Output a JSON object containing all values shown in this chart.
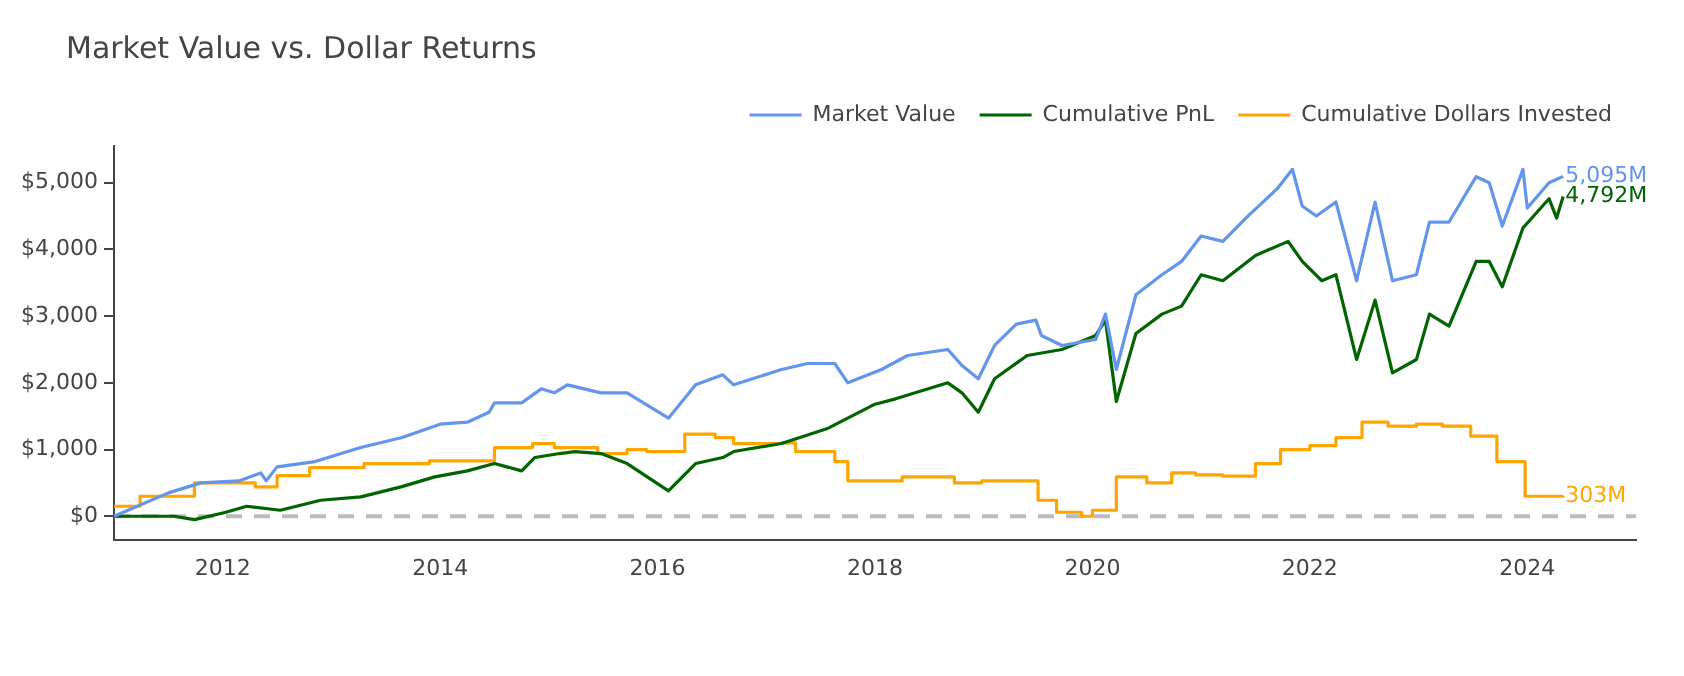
{
  "chart_data": {
    "type": "line",
    "title": "Market Value vs. Dollar Returns",
    "xlim": [
      2011,
      2025
    ],
    "xticks": [
      2012,
      2014,
      2016,
      2018,
      2020,
      2022,
      2024
    ],
    "ylim": [
      -350,
      5550
    ],
    "yticks": [
      {
        "value": 0,
        "label": "$0"
      },
      {
        "value": 1000,
        "label": "$1,000"
      },
      {
        "value": 2000,
        "label": "$2,000"
      },
      {
        "value": 3000,
        "label": "$3,000"
      },
      {
        "value": 4000,
        "label": "$4,000"
      },
      {
        "value": 5000,
        "label": "$5,000"
      }
    ],
    "grid": false,
    "legend": "top right",
    "marker": "none",
    "line_style": "solid",
    "series": [
      {
        "name": "Market Value",
        "color": "#6495ed",
        "x": [
          2011.0,
          2011.5,
          2011.8,
          2012.15,
          2012.35,
          2012.4,
          2012.5,
          2012.85,
          2013.27,
          2013.65,
          2014.0,
          2014.25,
          2014.45,
          2014.5,
          2014.75,
          2014.93,
          2015.05,
          2015.17,
          2015.48,
          2015.72,
          2016.1,
          2016.35,
          2016.6,
          2016.7,
          2017.14,
          2017.38,
          2017.63,
          2017.75,
          2018.06,
          2018.3,
          2018.67,
          2018.8,
          2018.95,
          2019.1,
          2019.3,
          2019.48,
          2019.53,
          2019.72,
          2020.03,
          2020.12,
          2020.22,
          2020.4,
          2020.64,
          2020.82,
          2021.0,
          2021.2,
          2021.43,
          2021.7,
          2021.84,
          2021.93,
          2022.06,
          2022.24,
          2022.43,
          2022.6,
          2022.76,
          2022.98,
          2023.1,
          2023.28,
          2023.53,
          2023.65,
          2023.77,
          2023.96,
          2024.0,
          2024.2,
          2024.33
        ],
        "values": [
          0,
          350,
          500,
          530,
          650,
          530,
          740,
          820,
          1030,
          1180,
          1380,
          1410,
          1560,
          1700,
          1700,
          1910,
          1850,
          1970,
          1850,
          1850,
          1470,
          1970,
          2120,
          1970,
          2200,
          2290,
          2290,
          2000,
          2200,
          2410,
          2500,
          2260,
          2060,
          2560,
          2880,
          2940,
          2710,
          2560,
          2650,
          3030,
          2200,
          3320,
          3620,
          3820,
          4200,
          4120,
          4500,
          4910,
          5200,
          4650,
          4500,
          4710,
          3530,
          4710,
          3530,
          3620,
          4410,
          4410,
          5090,
          5000,
          4350,
          5200,
          4620,
          5000,
          5095
        ],
        "value_labels": [
          null,
          null,
          null,
          null,
          null,
          null,
          null,
          null,
          null,
          null,
          null,
          null,
          null,
          null,
          null,
          null,
          null,
          null,
          null,
          null,
          null,
          null,
          null,
          null,
          null,
          null,
          null,
          null,
          null,
          null,
          null,
          null,
          null,
          null,
          null,
          null,
          null,
          null,
          null,
          null,
          null,
          null,
          null,
          null,
          null,
          null,
          null,
          null,
          null,
          null,
          null,
          null,
          null,
          null,
          null,
          null,
          null,
          null,
          null,
          null,
          null,
          null,
          null,
          null,
          "5,095M"
        ]
      },
      {
        "name": "Cumulative PnL",
        "color": "#006400",
        "x": [
          2011.0,
          2011.55,
          2011.74,
          2012.03,
          2012.22,
          2012.53,
          2012.9,
          2013.27,
          2013.64,
          2013.95,
          2014.25,
          2014.5,
          2014.75,
          2014.87,
          2015.1,
          2015.24,
          2015.48,
          2015.72,
          2016.1,
          2016.35,
          2016.6,
          2016.7,
          2017.14,
          2017.57,
          2018.0,
          2018.19,
          2018.67,
          2018.8,
          2018.95,
          2019.1,
          2019.4,
          2019.72,
          2020.03,
          2020.12,
          2020.22,
          2020.4,
          2020.64,
          2020.82,
          2021.0,
          2021.2,
          2021.5,
          2021.8,
          2021.93,
          2022.11,
          2022.24,
          2022.43,
          2022.6,
          2022.76,
          2022.98,
          2023.1,
          2023.28,
          2023.53,
          2023.65,
          2023.77,
          2023.96,
          2024.2,
          2024.27,
          2024.33
        ],
        "values": [
          0,
          0,
          -50,
          60,
          150,
          90,
          240,
          290,
          440,
          590,
          680,
          790,
          680,
          880,
          940,
          970,
          940,
          790,
          380,
          790,
          880,
          970,
          1090,
          1320,
          1680,
          1760,
          2000,
          1850,
          1560,
          2060,
          2410,
          2500,
          2710,
          2940,
          1720,
          2740,
          3030,
          3150,
          3620,
          3530,
          3910,
          4120,
          3820,
          3530,
          3620,
          2350,
          3240,
          2150,
          2350,
          3030,
          2850,
          3820,
          3820,
          3440,
          4320,
          4760,
          4470,
          4792
        ],
        "value_labels": [
          null,
          null,
          null,
          null,
          null,
          null,
          null,
          null,
          null,
          null,
          null,
          null,
          null,
          null,
          null,
          null,
          null,
          null,
          null,
          null,
          null,
          null,
          null,
          null,
          null,
          null,
          null,
          null,
          null,
          null,
          null,
          null,
          null,
          null,
          null,
          null,
          null,
          null,
          null,
          null,
          null,
          null,
          null,
          null,
          null,
          null,
          null,
          null,
          null,
          null,
          null,
          null,
          null,
          null,
          null,
          null,
          null,
          "4,792M"
        ]
      },
      {
        "name": "Cumulative Dollars Invested",
        "color": "#ffa500",
        "type": "step",
        "x": [
          2011.0,
          2011.24,
          2011.74,
          2012.3,
          2012.5,
          2012.8,
          2013.3,
          2013.9,
          2014.5,
          2014.85,
          2015.05,
          2015.45,
          2015.72,
          2015.9,
          2016.25,
          2016.53,
          2016.7,
          2017.14,
          2017.27,
          2017.63,
          2017.75,
          2018.25,
          2018.73,
          2018.98,
          2019.5,
          2019.67,
          2019.9,
          2020.0,
          2020.22,
          2020.5,
          2020.73,
          2020.95,
          2021.2,
          2021.5,
          2021.73,
          2022.0,
          2022.24,
          2022.48,
          2022.72,
          2022.98,
          2023.22,
          2023.48,
          2023.72,
          2023.98,
          2024.33
        ],
        "values": [
          150,
          300,
          500,
          440,
          610,
          730,
          790,
          830,
          1030,
          1090,
          1030,
          940,
          1000,
          970,
          1230,
          1180,
          1090,
          1100,
          970,
          820,
          530,
          590,
          500,
          530,
          240,
          60,
          0,
          90,
          590,
          500,
          650,
          620,
          600,
          790,
          1000,
          1060,
          1180,
          1410,
          1350,
          1380,
          1350,
          1200,
          820,
          300,
          303
        ],
        "value_labels": [
          null,
          null,
          null,
          null,
          null,
          null,
          null,
          null,
          null,
          null,
          null,
          null,
          null,
          null,
          null,
          null,
          null,
          null,
          null,
          null,
          null,
          null,
          null,
          null,
          null,
          null,
          null,
          null,
          null,
          null,
          null,
          null,
          null,
          null,
          null,
          null,
          null,
          null,
          null,
          null,
          null,
          null,
          null,
          null,
          "303M"
        ]
      }
    ],
    "ref_lines": [
      {
        "axis": "y",
        "value": 0,
        "color": "#bbbbbb",
        "line_style": "dashed"
      }
    ]
  }
}
